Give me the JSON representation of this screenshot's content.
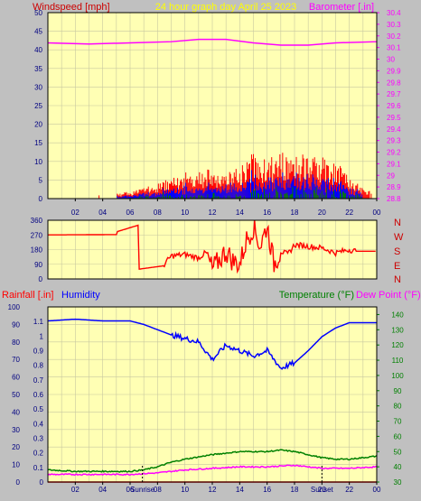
{
  "colors": {
    "background": "#c0c0c0",
    "plot_bg": "#ffffb4",
    "grid": "#c8c8a0",
    "red": "#ff0000",
    "blue": "#0000ff",
    "green": "#008000",
    "magenta": "#ff00ff",
    "dark_red": "#cc0000",
    "yellow": "#ffff00",
    "navy": "#000080"
  },
  "header": {
    "windspeed_label": "Windspeed [mph]",
    "graph_title": "24 hour graph day   April 25 2023",
    "barometer_label": "Barometer [.in]"
  },
  "bottom_header": {
    "rainfall_label": "Rainfall [.in]",
    "humidity_label": "Humidity",
    "temperature_label": "Temperature (°F)",
    "dewpoint_label": "Dew Point (°F)"
  },
  "direction_labels": [
    "N",
    "W",
    "S",
    "E",
    "N"
  ],
  "sunrise_label": "Sunrise",
  "sunset_label": "Sunset",
  "chart_data": [
    {
      "type": "line",
      "name": "wind-and-barometer",
      "x_ticks": [
        "02",
        "04",
        "06",
        "08",
        "10",
        "12",
        "14",
        "16",
        "18",
        "20",
        "22",
        "00"
      ],
      "left_axis": {
        "label": "Windspeed [mph]",
        "ylim": [
          0,
          50
        ],
        "ticks": [
          0,
          5,
          10,
          15,
          20,
          25,
          30,
          35,
          40,
          45,
          50
        ]
      },
      "right_axis": {
        "label": "Barometer [.in]",
        "ylim": [
          28.8,
          30.4
        ],
        "ticks": [
          "28.8",
          "28.9",
          "29",
          "29.1",
          "29.2",
          "29.3",
          "29.4",
          "29.5",
          "29.6",
          "29.7",
          "29.8",
          "29.9",
          "30",
          "30.1",
          "30.2",
          "30.3",
          "30.4"
        ]
      },
      "barometer_x": [
        0,
        3,
        6,
        9,
        11,
        13,
        15,
        17,
        19,
        21,
        24
      ],
      "barometer_y": [
        30.14,
        30.13,
        30.14,
        30.15,
        30.17,
        30.17,
        30.14,
        30.12,
        30.12,
        30.14,
        30.15
      ],
      "gust_profile_x": [
        0,
        5,
        7,
        8,
        10,
        12,
        13,
        14,
        15,
        16,
        17,
        18,
        19,
        20,
        21,
        22,
        23,
        24
      ],
      "gust_profile_y": [
        1,
        1,
        2,
        3,
        5,
        6,
        5,
        6,
        9,
        8,
        9,
        10,
        8,
        8,
        7,
        5,
        2,
        1
      ],
      "grid": true
    },
    {
      "type": "line",
      "name": "wind-direction",
      "y_ticks": [
        0,
        90,
        180,
        270,
        360
      ],
      "ylim": [
        0,
        360
      ],
      "direction_x": [
        0,
        5,
        5.05,
        6.6,
        6.65,
        8.4,
        9,
        10,
        11,
        11.5,
        12,
        13,
        13.5,
        14,
        14.5,
        15,
        15.5,
        16,
        16.5,
        17,
        17.5,
        18,
        19,
        20,
        21,
        22,
        22.5,
        24
      ],
      "direction_y": [
        270,
        272,
        290,
        330,
        60,
        80,
        140,
        150,
        130,
        160,
        60,
        170,
        110,
        90,
        240,
        320,
        200,
        330,
        90,
        170,
        150,
        210,
        200,
        190,
        160,
        180,
        170,
        170
      ],
      "grid": true
    },
    {
      "type": "line",
      "name": "rain-humidity-temperature",
      "x_ticks": [
        "02",
        "04",
        "06",
        "08",
        "10",
        "12",
        "14",
        "16",
        "18",
        "20",
        "22",
        "00"
      ],
      "left_axis": {
        "label": "Rainfall [.in]",
        "ylim": [
          0,
          1.2
        ],
        "ticks": [
          "0",
          "0.1",
          "0.2",
          "0.3",
          "0.4",
          "0.5",
          "0.6",
          "0.7",
          "0.8",
          "0.9",
          "1",
          "1.1"
        ]
      },
      "humidity_axis": {
        "label": "Humidity",
        "ylim": [
          0,
          100
        ],
        "ticks": [
          0,
          10,
          20,
          30,
          40,
          50,
          60,
          70,
          80,
          90,
          100
        ]
      },
      "right_axis": {
        "label": "Temperature (°F)",
        "ylim": [
          30,
          145
        ],
        "ticks": [
          30,
          40,
          50,
          60,
          70,
          80,
          90,
          100,
          110,
          120,
          130,
          140
        ]
      },
      "series": [
        {
          "name": "Humidity",
          "axis": "humidity",
          "x": [
            0,
            2,
            4,
            6,
            7,
            8,
            9,
            10,
            11,
            12,
            13,
            14,
            15,
            16,
            17,
            18,
            19,
            20,
            21,
            22,
            24
          ],
          "y": [
            92,
            93,
            92,
            92,
            90,
            87,
            84,
            82,
            80,
            70,
            78,
            75,
            72,
            75,
            65,
            68,
            75,
            83,
            88,
            91,
            91
          ]
        },
        {
          "name": "Temperature (°F)",
          "axis": "right",
          "x": [
            0,
            2,
            4,
            6,
            7,
            8,
            9,
            10,
            12,
            14,
            16,
            17,
            18,
            19,
            20,
            21,
            22,
            24
          ],
          "y": [
            38,
            37,
            37,
            37,
            38,
            40,
            43,
            45,
            48,
            50,
            50,
            51,
            50,
            48,
            46,
            45,
            45,
            47
          ]
        },
        {
          "name": "Dew Point (°F)",
          "axis": "right",
          "x": [
            0,
            2,
            4,
            6,
            8,
            10,
            12,
            14,
            16,
            18,
            20,
            22,
            24
          ],
          "y": [
            35,
            35,
            35,
            35,
            36,
            38,
            39,
            40,
            40,
            41,
            39,
            39,
            40
          ]
        },
        {
          "name": "Rainfall [.in]",
          "axis": "left",
          "x": [
            0,
            24
          ],
          "y": [
            0,
            0
          ]
        }
      ],
      "sunrise_hour": 6.9,
      "sunset_hour": 20.0,
      "grid": true
    }
  ]
}
